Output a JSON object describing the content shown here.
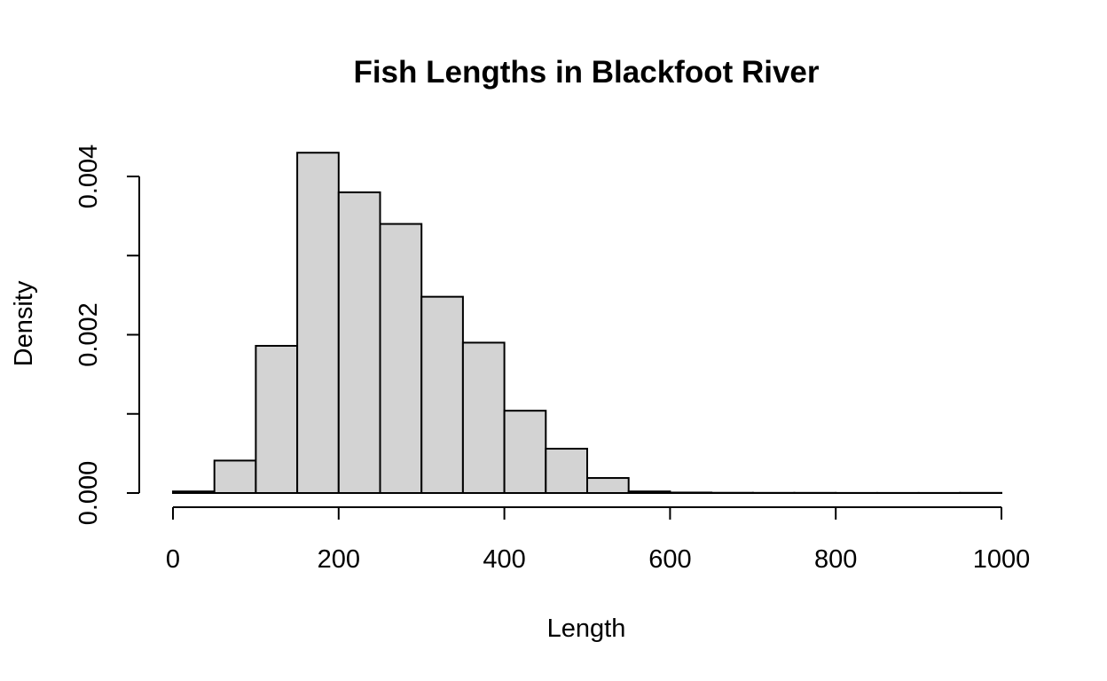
{
  "chart_data": {
    "type": "bar",
    "title": "Fish Lengths in Blackfoot River",
    "xlabel": "Length",
    "ylabel": "Density",
    "bin_edges": [
      0,
      50,
      100,
      150,
      200,
      250,
      300,
      350,
      400,
      450,
      500,
      550,
      600,
      650,
      700,
      750,
      800,
      850,
      900,
      950,
      1000
    ],
    "values": [
      2e-05,
      0.00041,
      0.00186,
      0.0043,
      0.0038,
      0.0034,
      0.00248,
      0.0019,
      0.00104,
      0.00056,
      0.00019,
      2e-05,
      6e-06,
      3e-06,
      2e-06,
      2e-06,
      1e-06,
      1e-06,
      1e-06,
      2e-06
    ],
    "xlim": [
      0,
      1000
    ],
    "ylim": [
      0,
      0.004
    ],
    "x_ticks": [
      0,
      200,
      400,
      600,
      800,
      1000
    ],
    "x_tick_labels": [
      "0",
      "200",
      "400",
      "600",
      "800",
      "1000"
    ],
    "y_ticks": [
      0,
      0.001,
      0.002,
      0.003,
      0.004
    ],
    "y_tick_labels": [
      "0.000",
      "",
      "0.002",
      "",
      "0.004"
    ],
    "grid": false,
    "legend": "none"
  }
}
